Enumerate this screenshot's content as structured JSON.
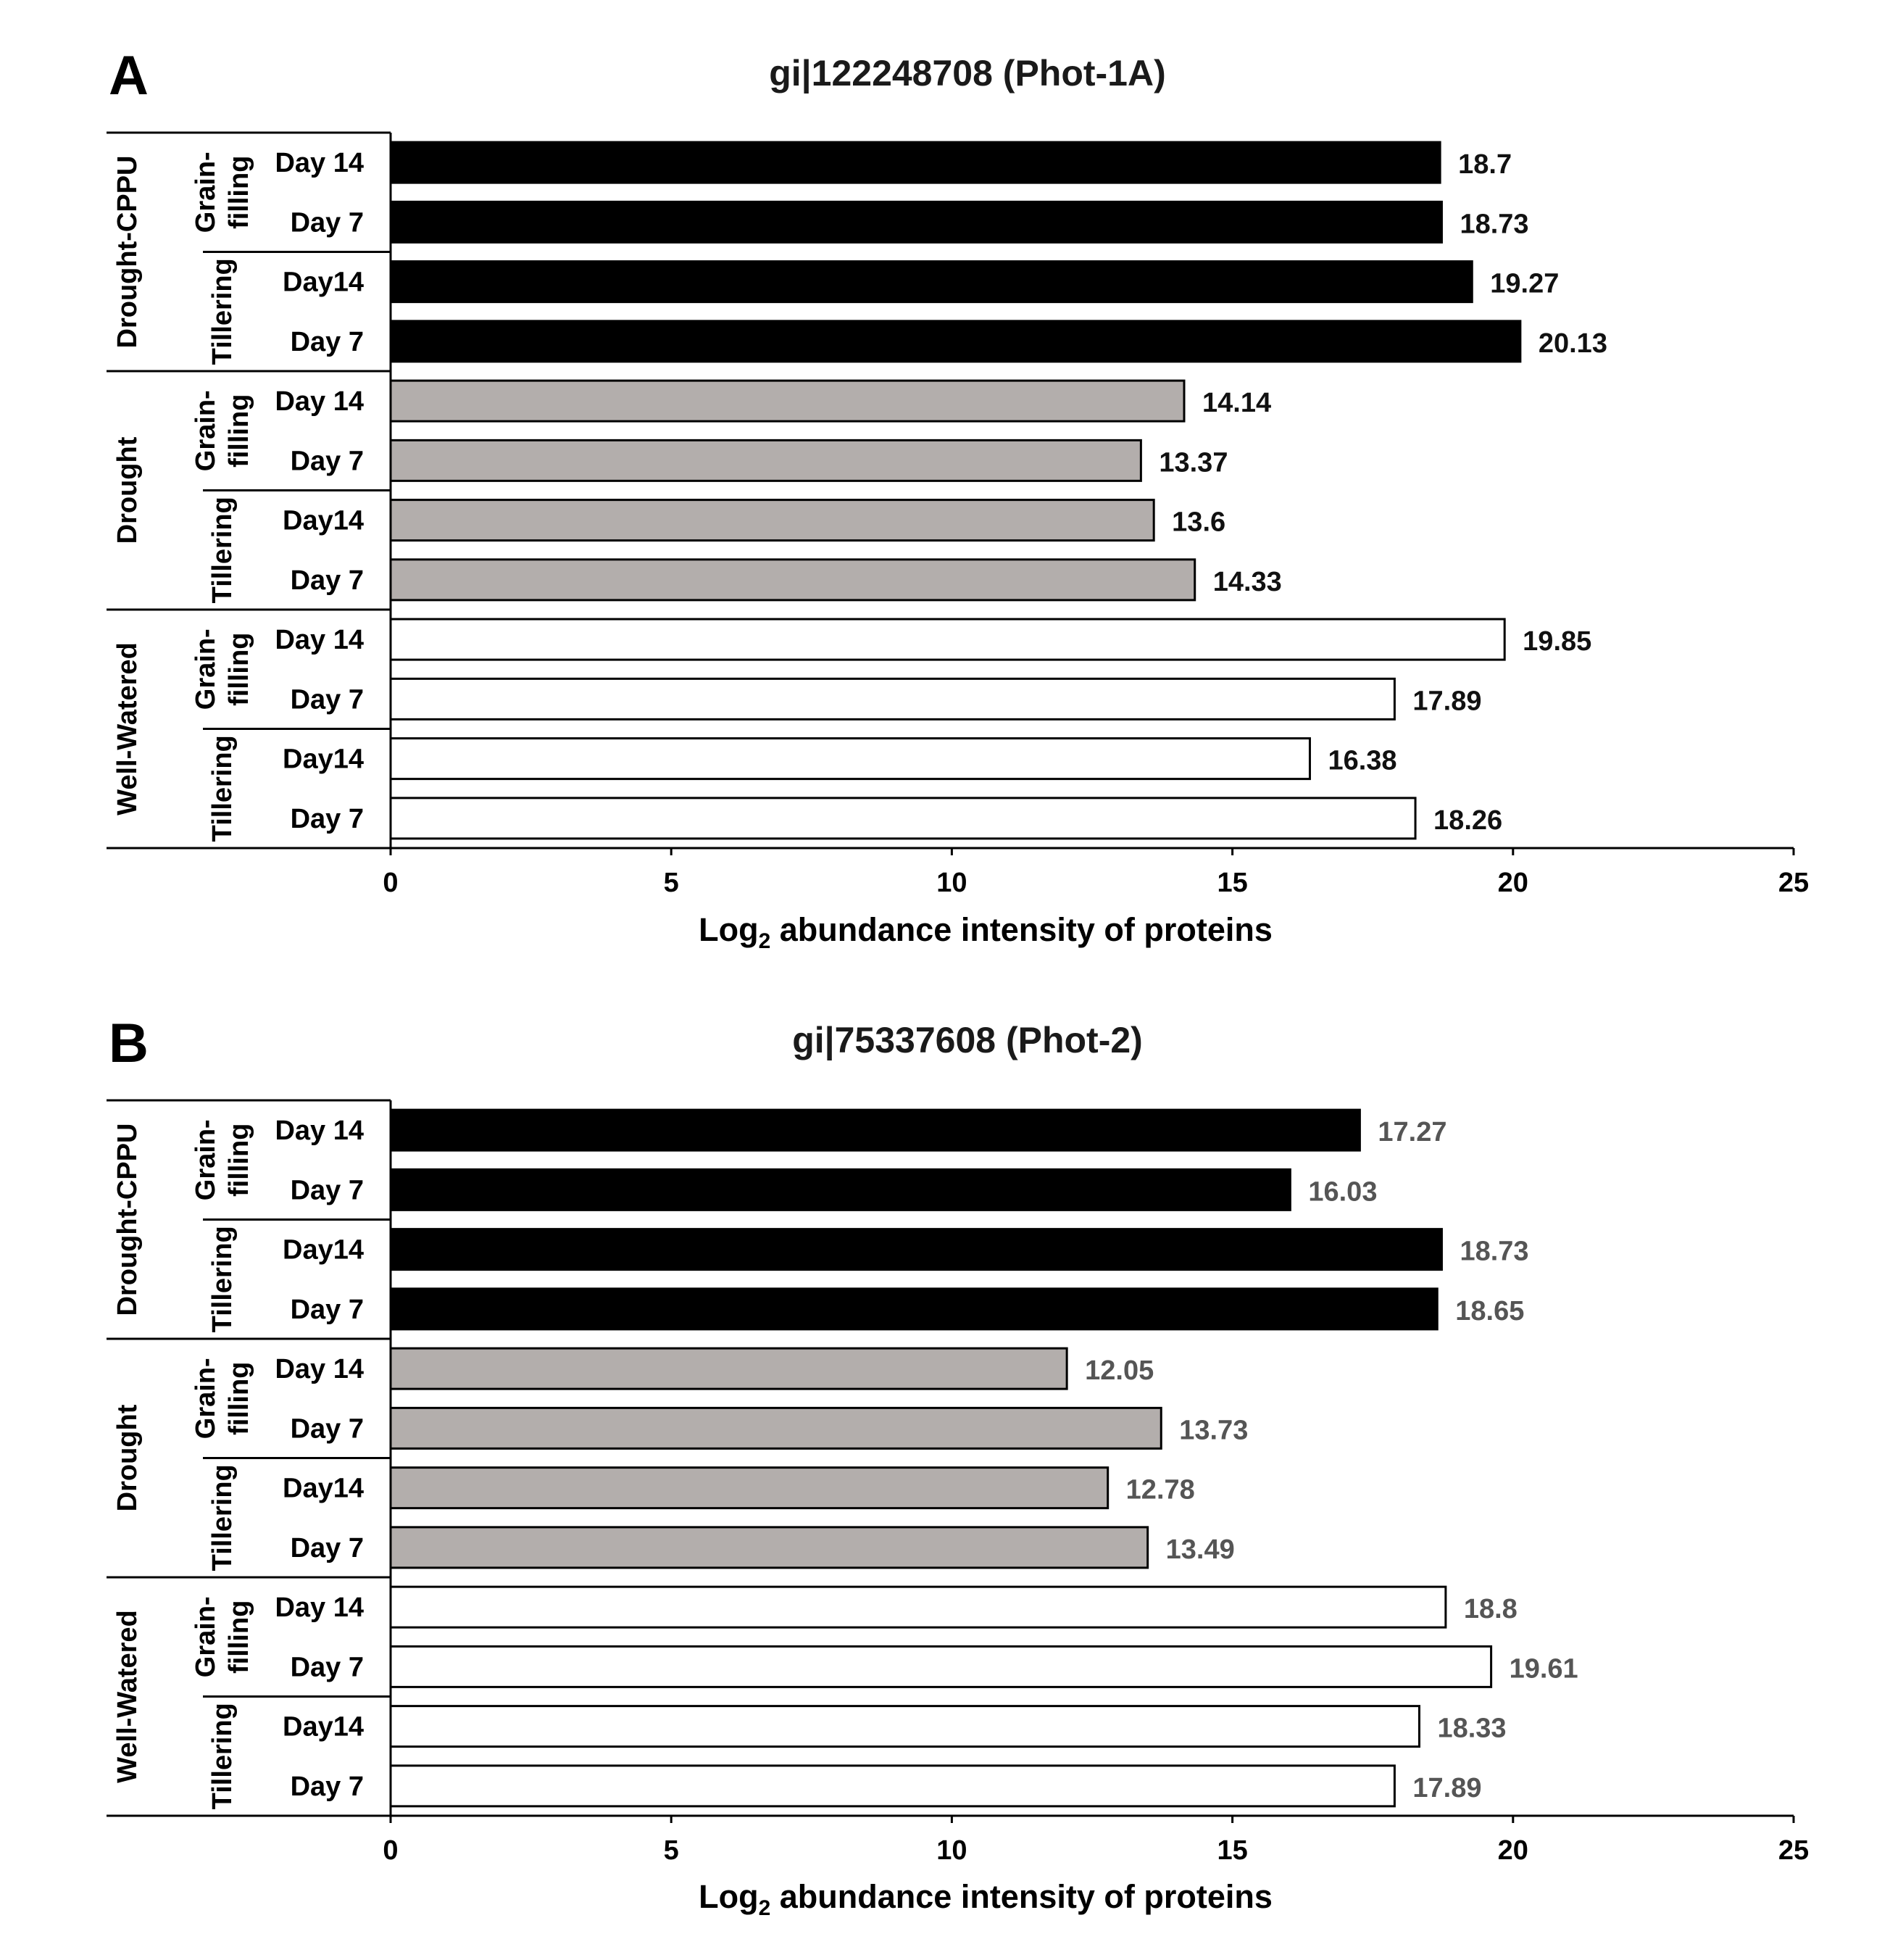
{
  "chart_data": [
    {
      "panel": "A",
      "type": "bar",
      "orientation": "horizontal",
      "title": "gi|122248708 (Phot-1A)",
      "xlabel_main": "Log",
      "xlabel_sub": "2",
      "xlabel_rest": " abundance intensity of proteins",
      "xlim": [
        0,
        25
      ],
      "xticks": [
        "0",
        "5",
        "10",
        "15",
        "20",
        "25"
      ],
      "value_label_color": "#111111",
      "groups": [
        {
          "name": "Drought-CPPU",
          "fill": "#000000",
          "subgroups": [
            {
              "name_lines": [
                "Grain-",
                "filling"
              ],
              "bars": [
                {
                  "label": "Day 14",
                  "value": 18.7,
                  "value_label": "18.7"
                },
                {
                  "label": "Day 7",
                  "value": 18.73,
                  "value_label": "18.73"
                }
              ]
            },
            {
              "name_lines": [
                "Tillering"
              ],
              "bars": [
                {
                  "label": "Day14",
                  "value": 19.27,
                  "value_label": "19.27"
                },
                {
                  "label": "Day 7",
                  "value": 20.13,
                  "value_label": "20.13"
                }
              ]
            }
          ]
        },
        {
          "name": "Drought",
          "fill": "#b3aeac",
          "subgroups": [
            {
              "name_lines": [
                "Grain-",
                "filling"
              ],
              "bars": [
                {
                  "label": "Day 14",
                  "value": 14.14,
                  "value_label": "14.14"
                },
                {
                  "label": "Day 7",
                  "value": 13.37,
                  "value_label": "13.37"
                }
              ]
            },
            {
              "name_lines": [
                "Tillering"
              ],
              "bars": [
                {
                  "label": "Day14",
                  "value": 13.6,
                  "value_label": "13.6"
                },
                {
                  "label": "Day 7",
                  "value": 14.33,
                  "value_label": "14.33"
                }
              ]
            }
          ]
        },
        {
          "name": "Well-Watered",
          "fill": "#ffffff",
          "subgroups": [
            {
              "name_lines": [
                "Grain-",
                "filling"
              ],
              "bars": [
                {
                  "label": "Day 14",
                  "value": 19.85,
                  "value_label": "19.85"
                },
                {
                  "label": "Day 7",
                  "value": 17.89,
                  "value_label": "17.89"
                }
              ]
            },
            {
              "name_lines": [
                "Tillering"
              ],
              "bars": [
                {
                  "label": "Day14",
                  "value": 16.38,
                  "value_label": "16.38"
                },
                {
                  "label": "Day 7",
                  "value": 18.26,
                  "value_label": "18.26"
                }
              ]
            }
          ]
        }
      ]
    },
    {
      "panel": "B",
      "type": "bar",
      "orientation": "horizontal",
      "title": "gi|75337608  (Phot-2)",
      "xlabel_main": "Log",
      "xlabel_sub": "2",
      "xlabel_rest": " abundance intensity of proteins",
      "xlim": [
        0,
        25
      ],
      "xticks": [
        "0",
        "5",
        "10",
        "15",
        "20",
        "25"
      ],
      "value_label_color": "#555555",
      "groups": [
        {
          "name": "Drought-CPPU",
          "fill": "#000000",
          "subgroups": [
            {
              "name_lines": [
                "Grain-",
                "filling"
              ],
              "bars": [
                {
                  "label": "Day 14",
                  "value": 17.27,
                  "value_label": "17.27"
                },
                {
                  "label": "Day 7",
                  "value": 16.03,
                  "value_label": "16.03"
                }
              ]
            },
            {
              "name_lines": [
                "Tillering"
              ],
              "bars": [
                {
                  "label": "Day14",
                  "value": 18.73,
                  "value_label": "18.73"
                },
                {
                  "label": "Day 7",
                  "value": 18.65,
                  "value_label": "18.65"
                }
              ]
            }
          ]
        },
        {
          "name": "Drought",
          "fill": "#b3aeac",
          "subgroups": [
            {
              "name_lines": [
                "Grain-",
                "filling"
              ],
              "bars": [
                {
                  "label": "Day 14",
                  "value": 12.05,
                  "value_label": "12.05"
                },
                {
                  "label": "Day 7",
                  "value": 13.73,
                  "value_label": "13.73"
                }
              ]
            },
            {
              "name_lines": [
                "Tillering"
              ],
              "bars": [
                {
                  "label": "Day14",
                  "value": 12.78,
                  "value_label": "12.78"
                },
                {
                  "label": "Day 7",
                  "value": 13.49,
                  "value_label": "13.49"
                }
              ]
            }
          ]
        },
        {
          "name": "Well-Watered",
          "fill": "#ffffff",
          "subgroups": [
            {
              "name_lines": [
                "Grain-",
                "filling"
              ],
              "bars": [
                {
                  "label": "Day 14",
                  "value": 18.8,
                  "value_label": "18.8"
                },
                {
                  "label": "Day 7",
                  "value": 19.61,
                  "value_label": "19.61"
                }
              ]
            },
            {
              "name_lines": [
                "Tillering"
              ],
              "bars": [
                {
                  "label": "Day14",
                  "value": 18.33,
                  "value_label": "18.33"
                },
                {
                  "label": "Day 7",
                  "value": 17.89,
                  "value_label": "17.89"
                }
              ]
            }
          ]
        }
      ]
    }
  ]
}
